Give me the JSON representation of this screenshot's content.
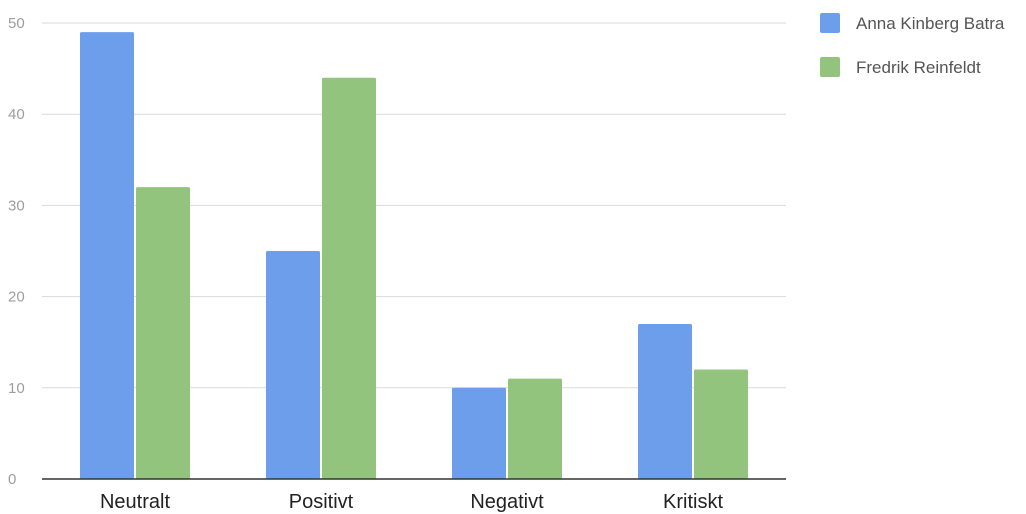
{
  "chart_data": {
    "type": "bar",
    "title": "",
    "xlabel": "",
    "ylabel": "",
    "categories": [
      "Neutralt",
      "Positivt",
      "Negativt",
      "Kritiskt"
    ],
    "series": [
      {
        "name": "Anna Kinberg Batra",
        "values": [
          49,
          25,
          10,
          17
        ],
        "color": "#6d9eeb"
      },
      {
        "name": "Fredrik Reinfeldt",
        "values": [
          32,
          44,
          11,
          12
        ],
        "color": "#93c47d"
      }
    ],
    "ylim": [
      0,
      50
    ],
    "yticks": [
      0,
      10,
      20,
      30,
      40,
      50
    ],
    "grid": true,
    "legend_position": "top-right"
  }
}
